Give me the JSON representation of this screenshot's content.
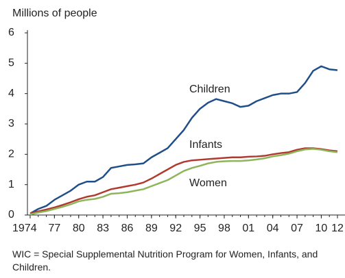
{
  "chart_data": {
    "type": "line",
    "y_label": "Millions of people",
    "x": [
      1974,
      1975,
      1976,
      1977,
      1978,
      1979,
      1980,
      1981,
      1982,
      1983,
      1984,
      1985,
      1986,
      1987,
      1988,
      1989,
      1990,
      1991,
      1992,
      1993,
      1994,
      1995,
      1996,
      1997,
      1998,
      1999,
      2000,
      2001,
      2002,
      2003,
      2004,
      2005,
      2006,
      2007,
      2008,
      2009,
      2010,
      2011,
      2012
    ],
    "series": [
      {
        "name": "Children",
        "color": "#1f4e89",
        "values": [
          0.05,
          0.2,
          0.3,
          0.5,
          0.65,
          0.8,
          1.0,
          1.1,
          1.1,
          1.25,
          1.55,
          1.6,
          1.65,
          1.67,
          1.7,
          1.9,
          2.05,
          2.2,
          2.5,
          2.8,
          3.2,
          3.5,
          3.7,
          3.82,
          3.75,
          3.68,
          3.56,
          3.6,
          3.75,
          3.85,
          3.95,
          4.0,
          4.0,
          4.05,
          4.35,
          4.75,
          4.9,
          4.8,
          4.77
        ]
      },
      {
        "name": "Infants",
        "color": "#b03a2e",
        "values": [
          0.05,
          0.12,
          0.18,
          0.25,
          0.33,
          0.42,
          0.52,
          0.6,
          0.65,
          0.75,
          0.85,
          0.9,
          0.95,
          1.0,
          1.07,
          1.2,
          1.35,
          1.5,
          1.65,
          1.75,
          1.8,
          1.82,
          1.84,
          1.86,
          1.88,
          1.9,
          1.9,
          1.92,
          1.93,
          1.95,
          2.0,
          2.04,
          2.07,
          2.15,
          2.2,
          2.2,
          2.17,
          2.13,
          2.1
        ]
      },
      {
        "name": "Women",
        "color": "#8db55a",
        "values": [
          0.02,
          0.08,
          0.13,
          0.2,
          0.27,
          0.35,
          0.45,
          0.5,
          0.53,
          0.6,
          0.7,
          0.72,
          0.75,
          0.8,
          0.85,
          0.95,
          1.05,
          1.15,
          1.3,
          1.45,
          1.55,
          1.62,
          1.7,
          1.75,
          1.77,
          1.78,
          1.78,
          1.8,
          1.83,
          1.87,
          1.93,
          1.97,
          2.02,
          2.1,
          2.16,
          2.18,
          2.15,
          2.1,
          2.07
        ]
      }
    ],
    "xlim": [
      1974,
      2012
    ],
    "xticks": [
      1974,
      {
        "value": 1977,
        "label": "77"
      },
      {
        "value": 1980,
        "label": "80"
      },
      {
        "value": 1983,
        "label": "83"
      },
      {
        "value": 1986,
        "label": "86"
      },
      {
        "value": 1989,
        "label": "89"
      },
      {
        "value": 1992,
        "label": "92"
      },
      {
        "value": 1995,
        "label": "95"
      },
      {
        "value": 1998,
        "label": "98"
      },
      {
        "value": 2001,
        "label": "01"
      },
      {
        "value": 2004,
        "label": "04"
      },
      {
        "value": 2007,
        "label": "07"
      },
      {
        "value": 2010,
        "label": "10"
      },
      {
        "value": 2012,
        "label": "12"
      }
    ],
    "ylim": [
      0,
      6
    ],
    "yticks": [
      0,
      1,
      2,
      3,
      4,
      5,
      6
    ],
    "grid": false,
    "footnote": "WIC = Special Supplemental Nutrition Program for Women, Infants, and Children."
  }
}
